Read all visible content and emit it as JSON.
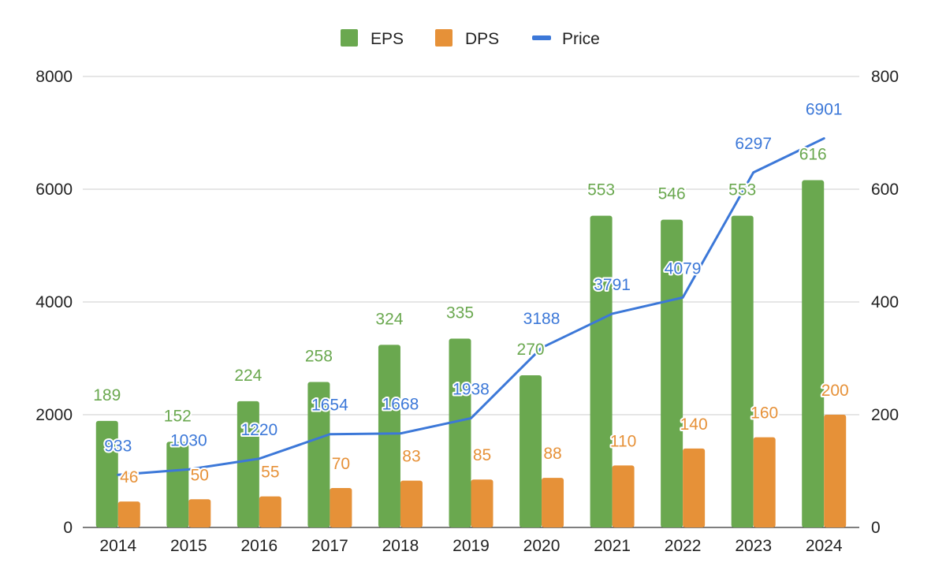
{
  "chart_data": {
    "type": "bar",
    "categories": [
      "2014",
      "2015",
      "2016",
      "2017",
      "2018",
      "2019",
      "2020",
      "2021",
      "2022",
      "2023",
      "2024"
    ],
    "series": [
      {
        "name": "EPS",
        "type": "bar",
        "axis": "left",
        "color": "#6aa84f",
        "values": [
          1890,
          1520,
          2240,
          2580,
          3240,
          3350,
          2700,
          5530,
          5460,
          5530,
          6160
        ],
        "labels": [
          "189",
          "152",
          "224",
          "258",
          "324",
          "335",
          "270",
          "553",
          "546",
          "553",
          "616"
        ]
      },
      {
        "name": "DPS",
        "type": "bar",
        "axis": "right",
        "color": "#e69138",
        "values": [
          46,
          50,
          55,
          70,
          83,
          85,
          88,
          110,
          140,
          160,
          200
        ],
        "labels": [
          "46",
          "50",
          "55",
          "70",
          "83",
          "85",
          "88",
          "110",
          "140",
          "160",
          "200"
        ]
      },
      {
        "name": "Price",
        "type": "line",
        "axis": "left",
        "color": "#3c78d8",
        "values": [
          933,
          1030,
          1220,
          1654,
          1668,
          1938,
          3188,
          3791,
          4079,
          6297,
          6901
        ],
        "labels": [
          "933",
          "1030",
          "1220",
          "1654",
          "1668",
          "1938",
          "3188",
          "3791",
          "4079",
          "6297",
          "6901"
        ]
      }
    ],
    "y_left": {
      "ylim": [
        0,
        8000
      ],
      "ticks": [
        "0",
        "2000",
        "4000",
        "6000",
        "8000"
      ]
    },
    "y_right": {
      "ylim": [
        0,
        800
      ],
      "ticks": [
        "0",
        "200",
        "400",
        "600",
        "800"
      ]
    },
    "legend_position": "top-center",
    "grid": true
  }
}
